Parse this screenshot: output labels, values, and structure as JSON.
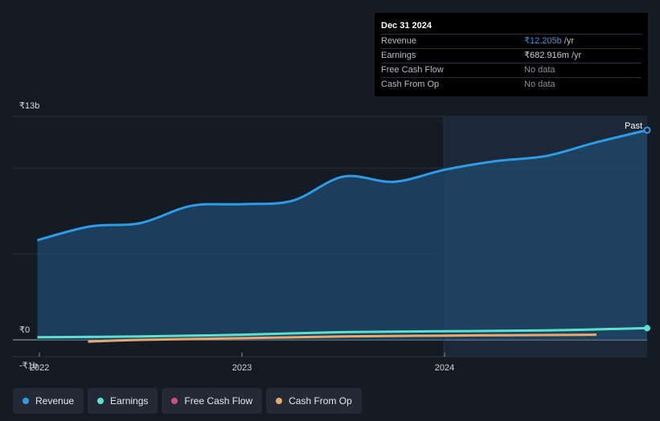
{
  "tooltip": {
    "date": "Dec 31 2024",
    "rows": [
      {
        "label": "Revenue",
        "value": "₹12.205b",
        "unit": "/yr"
      },
      {
        "label": "Earnings",
        "value": "₹682.916m",
        "unit": "/yr"
      },
      {
        "label": "Free Cash Flow",
        "value": "No data",
        "unit": ""
      },
      {
        "label": "Cash From Op",
        "value": "No data",
        "unit": ""
      }
    ]
  },
  "legend": [
    {
      "label": "Revenue",
      "color": "#2f9be6"
    },
    {
      "label": "Earnings",
      "color": "#5ee0cf"
    },
    {
      "label": "Free Cash Flow",
      "color": "#cc4f87"
    },
    {
      "label": "Cash From Op",
      "color": "#e8a96b"
    }
  ],
  "chart_data": {
    "type": "line",
    "ylim": [
      -1,
      13
    ],
    "y_tick_labels": [
      "₹13b",
      "₹0",
      "-₹1b"
    ],
    "x_tick_labels": [
      "2022",
      "2023",
      "2024"
    ],
    "past_label": "Past",
    "colors": {
      "revenue": "#2f9be6",
      "earnings": "#5ee0cf",
      "cash_from_op": "#e8a96b"
    },
    "series": [
      {
        "name": "Revenue",
        "x": [
          2021.99,
          2022.25,
          2022.5,
          2022.75,
          2023.0,
          2023.25,
          2023.5,
          2023.75,
          2024.0,
          2024.25,
          2024.5,
          2024.75,
          2025.0
        ],
        "values": [
          5.8,
          6.6,
          6.8,
          7.8,
          7.9,
          8.1,
          9.5,
          9.2,
          9.9,
          10.4,
          10.7,
          11.5,
          12.205
        ]
      },
      {
        "name": "Earnings",
        "x": [
          2021.99,
          2022.5,
          2023.0,
          2023.5,
          2024.0,
          2024.5,
          2025.0
        ],
        "values": [
          0.15,
          0.2,
          0.3,
          0.45,
          0.5,
          0.55,
          0.683
        ]
      },
      {
        "name": "Cash From Op",
        "x": [
          2022.24,
          2022.5,
          2023.0,
          2023.5,
          2024.0,
          2024.5,
          2024.75
        ],
        "values": [
          -0.1,
          0.0,
          0.1,
          0.2,
          0.25,
          0.28,
          0.3
        ]
      }
    ]
  }
}
